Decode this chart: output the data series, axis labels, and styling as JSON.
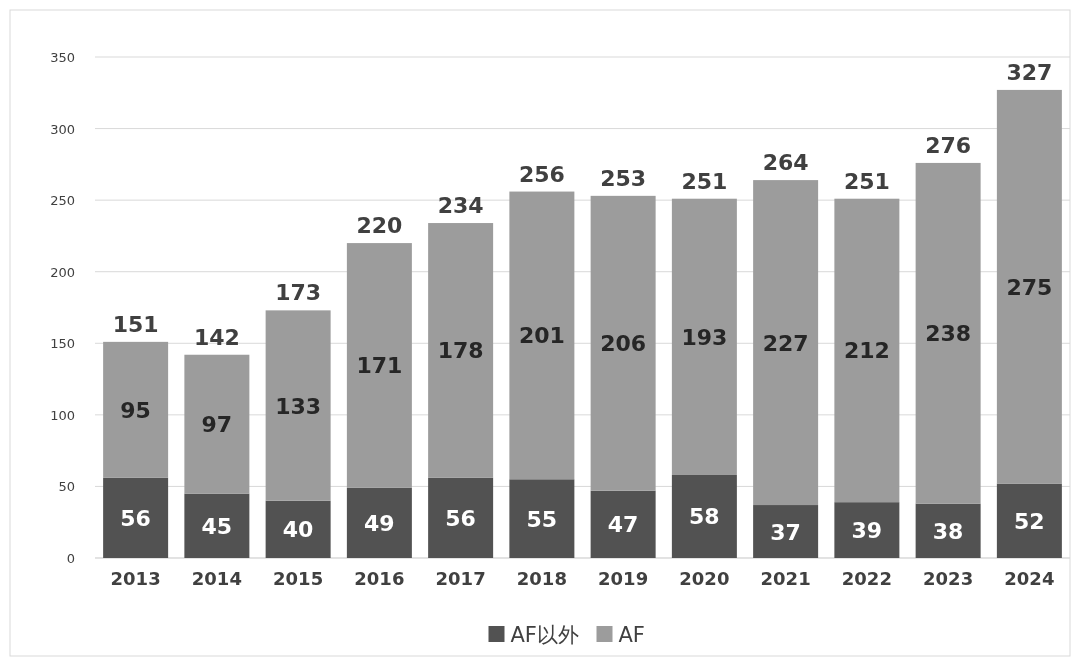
{
  "chart_data": {
    "type": "bar",
    "stacked": true,
    "categories": [
      "2013",
      "2014",
      "2015",
      "2016",
      "2017",
      "2018",
      "2019",
      "2020",
      "2021",
      "2022",
      "2023",
      "2024"
    ],
    "series": [
      {
        "name": "AF以外",
        "color": "#525252",
        "values": [
          56,
          45,
          40,
          49,
          56,
          55,
          47,
          58,
          37,
          39,
          38,
          52
        ]
      },
      {
        "name": "AF",
        "color": "#9c9c9c",
        "values": [
          95,
          97,
          133,
          171,
          178,
          201,
          206,
          193,
          227,
          212,
          238,
          275
        ]
      }
    ],
    "totals": [
      "151",
      "142",
      "173",
      "220",
      "234",
      "256",
      "253",
      "251",
      "264",
      "251",
      "276",
      "327"
    ],
    "data_labels": true,
    "ylim": [
      0,
      350
    ],
    "yticks": [
      0,
      50,
      100,
      150,
      200,
      250,
      300,
      350
    ],
    "grid": "y",
    "legend": "bottom"
  }
}
